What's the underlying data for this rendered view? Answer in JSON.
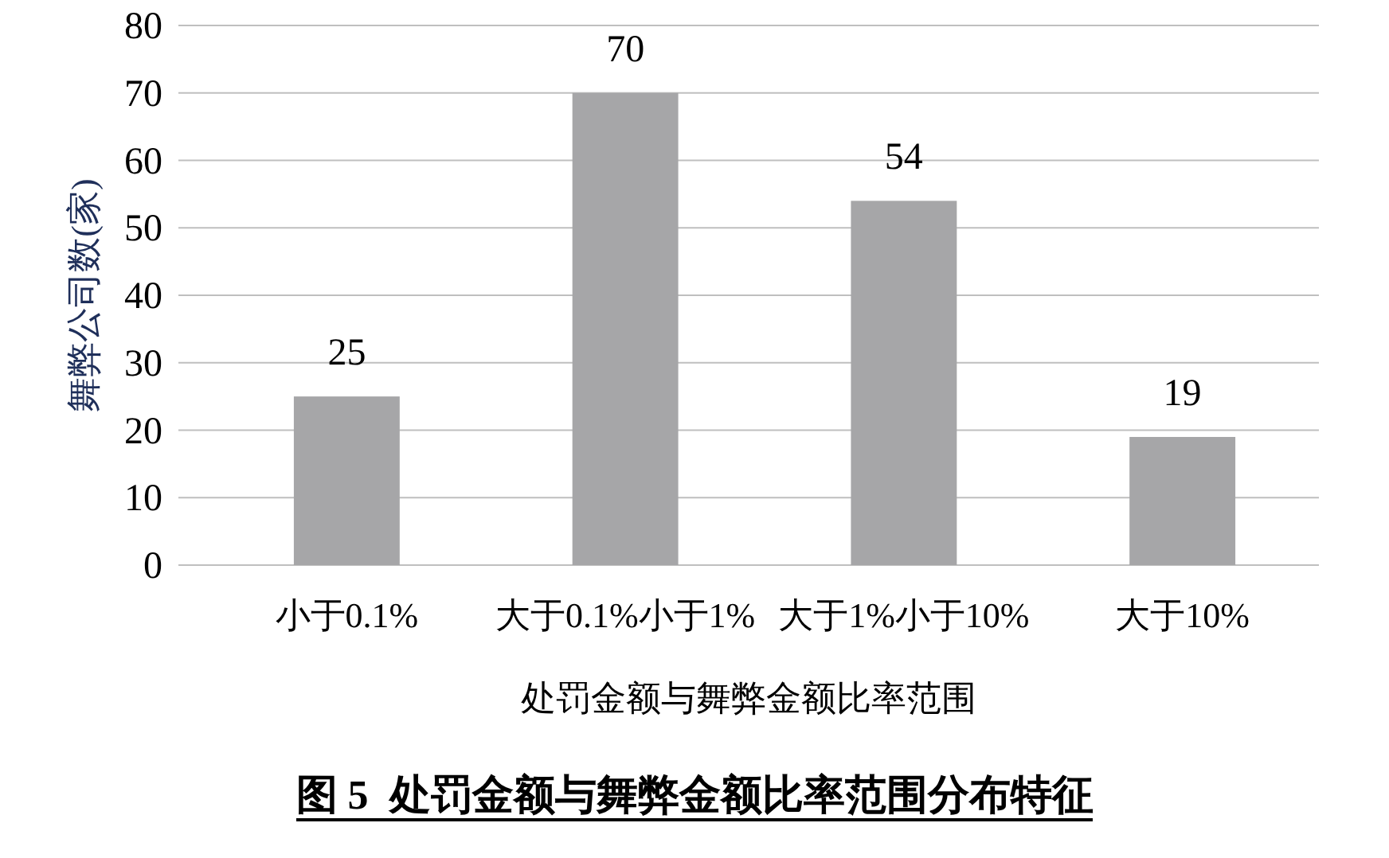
{
  "chart_data": {
    "type": "bar",
    "title": "图 5  处罚金额与舞弊金额比率范围分布特征",
    "xlabel": "处罚金额与舞弊金额比率范围",
    "ylabel": "舞弊公司数(家)",
    "categories": [
      "小于0.1%",
      "大于0.1%小于1%",
      "大于1%小于10%",
      "大于10%"
    ],
    "values": [
      25,
      70,
      54,
      19
    ],
    "color": "#a6a6a8",
    "ylim": [
      0,
      80
    ],
    "yticks": [
      0,
      10,
      20,
      30,
      40,
      50,
      60,
      70,
      80
    ],
    "grid": "y",
    "data_labels": true
  }
}
